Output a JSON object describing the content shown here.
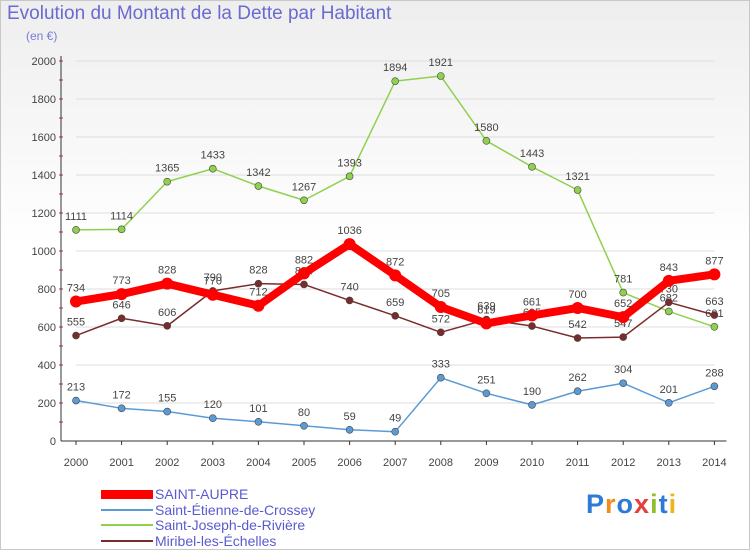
{
  "title": "Evolution du Montant de la Dette par Habitant",
  "unit": "(en €)",
  "logo": {
    "text": "Proxiti"
  },
  "colors": {
    "axis": "#333333",
    "grid": "#dddddd",
    "tick_marks": "#cc3333",
    "label": "#444444",
    "saint_aupre": "#ff0000",
    "saint_etienne": "#5b9bd5",
    "saint_joseph": "#8fd14f",
    "miribel": "#7a2b2b"
  },
  "chart_data": {
    "type": "line",
    "title": "Evolution du Montant de la Dette par Habitant",
    "ylabel": "(en €)",
    "xlabel": "",
    "categories": [
      "2000",
      "2001",
      "2002",
      "2003",
      "2004",
      "2005",
      "2006",
      "2007",
      "2008",
      "2009",
      "2010",
      "2011",
      "2012",
      "2013",
      "2014"
    ],
    "yticks": [
      "0",
      "200",
      "400",
      "600",
      "800",
      "1000",
      "1200",
      "1400",
      "1600",
      "1800",
      "2000"
    ],
    "ylim": [
      0,
      2000
    ],
    "grid": true,
    "legend_position": "bottom-left",
    "series": [
      {
        "name": "SAINT-AUPRE",
        "color": "#ff0000",
        "values": [
          734,
          773,
          828,
          770,
          712,
          882,
          1036,
          872,
          705,
          619,
          661,
          700,
          652,
          843,
          877
        ]
      },
      {
        "name": "Saint-Étienne-de-Crossey",
        "color": "#5b9bd5",
        "values": [
          213,
          172,
          155,
          120,
          101,
          80,
          59,
          49,
          333,
          251,
          190,
          262,
          304,
          201,
          288
        ]
      },
      {
        "name": "Saint-Joseph-de-Rivière",
        "color": "#8fd14f",
        "values": [
          1111,
          1114,
          1365,
          1433,
          1342,
          1267,
          1393,
          1894,
          1921,
          1580,
          1443,
          1321,
          781,
          682,
          601
        ]
      },
      {
        "name": "Miribel-les-Échelles",
        "color": "#7a2b2b",
        "values": [
          555,
          646,
          606,
          790,
          828,
          824,
          740,
          659,
          572,
          639,
          605,
          542,
          547,
          730,
          663
        ]
      }
    ]
  }
}
